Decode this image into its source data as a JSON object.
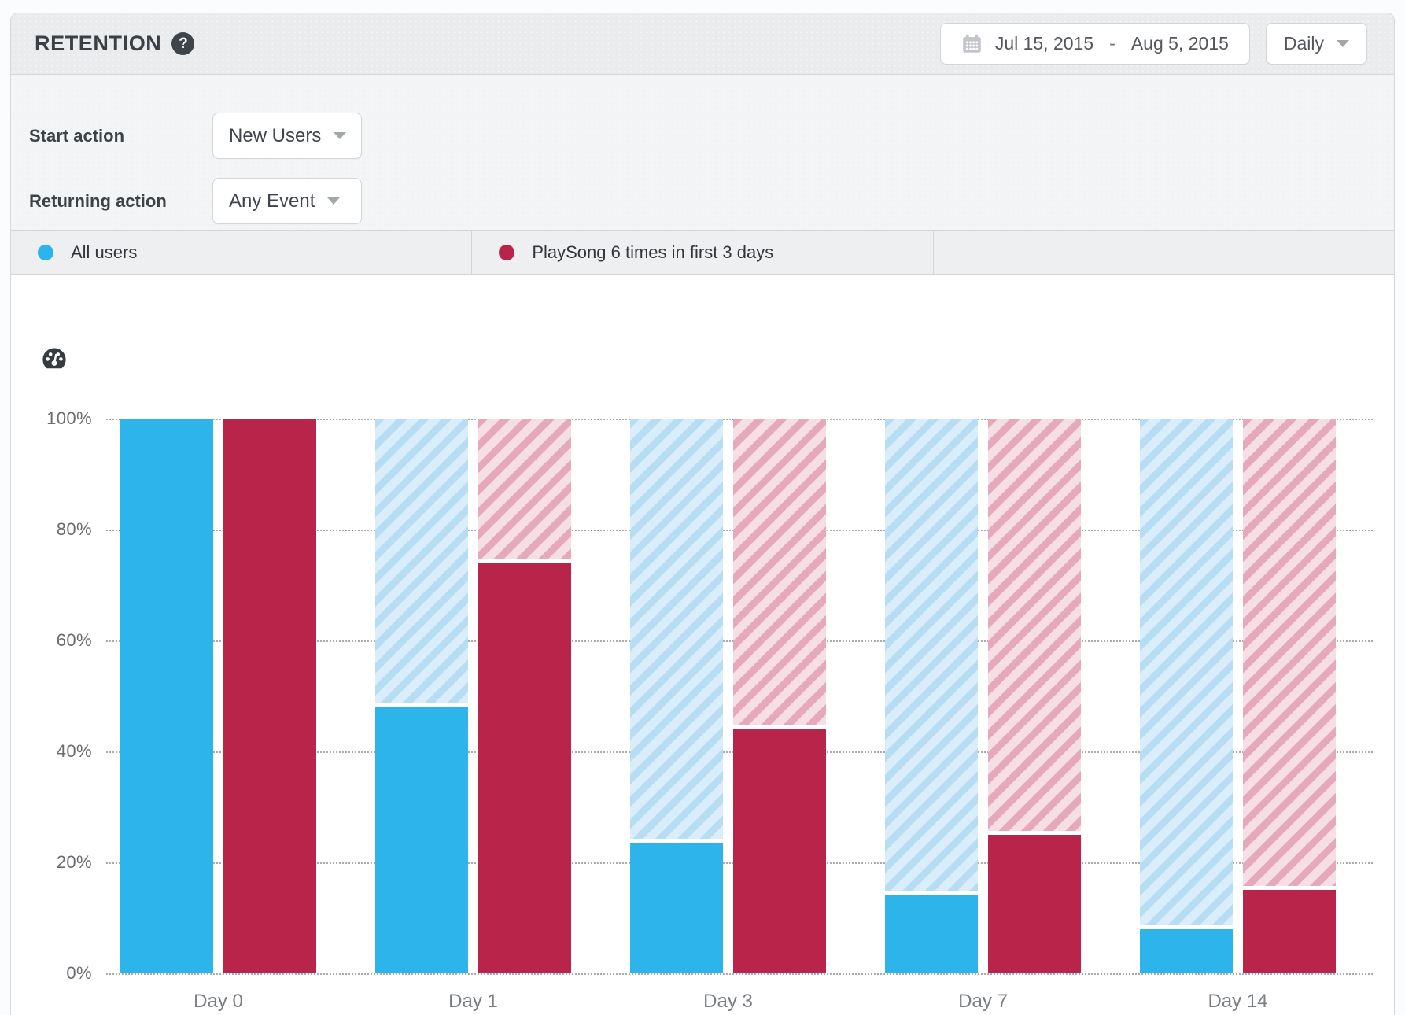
{
  "header": {
    "title": "RETENTION",
    "help_glyph": "?",
    "date_range": {
      "start": "Jul 15, 2015",
      "separator": "-",
      "end": "Aug 5, 2015"
    },
    "granularity": {
      "value": "Daily"
    }
  },
  "controls": {
    "start_action": {
      "label": "Start action",
      "value": "New Users"
    },
    "returning_action": {
      "label": "Returning action",
      "value": "Any Event"
    }
  },
  "legend": {
    "items": [
      {
        "label": "All users",
        "color": "#2db4ea"
      },
      {
        "label": "PlaySong 6 times in first 3 days",
        "color": "#b9254a"
      }
    ]
  },
  "chart_data": {
    "type": "bar",
    "categories": [
      "Day 0",
      "Day 1",
      "Day 3",
      "Day 7",
      "Day 14"
    ],
    "series": [
      {
        "name": "All users",
        "color": "#2db4ea",
        "hatch_bg": "#d9edfa",
        "hatch_stripe": "#b7ddf4",
        "values": [
          100,
          48,
          23.5,
          14,
          8
        ]
      },
      {
        "name": "PlaySong 6 times in first 3 days",
        "color": "#b9254a",
        "hatch_bg": "#f5dee4",
        "hatch_stripe": "#e6a8bb",
        "values": [
          100,
          74,
          44,
          25,
          15
        ]
      }
    ],
    "unit": "%",
    "yticks": [
      "0%",
      "20%",
      "40%",
      "60%",
      "80%",
      "100%"
    ],
    "ylim": [
      0,
      100
    ],
    "grid": "horizontal-dotted",
    "legend_position": "top",
    "hatched_remainder_to_100": true
  }
}
